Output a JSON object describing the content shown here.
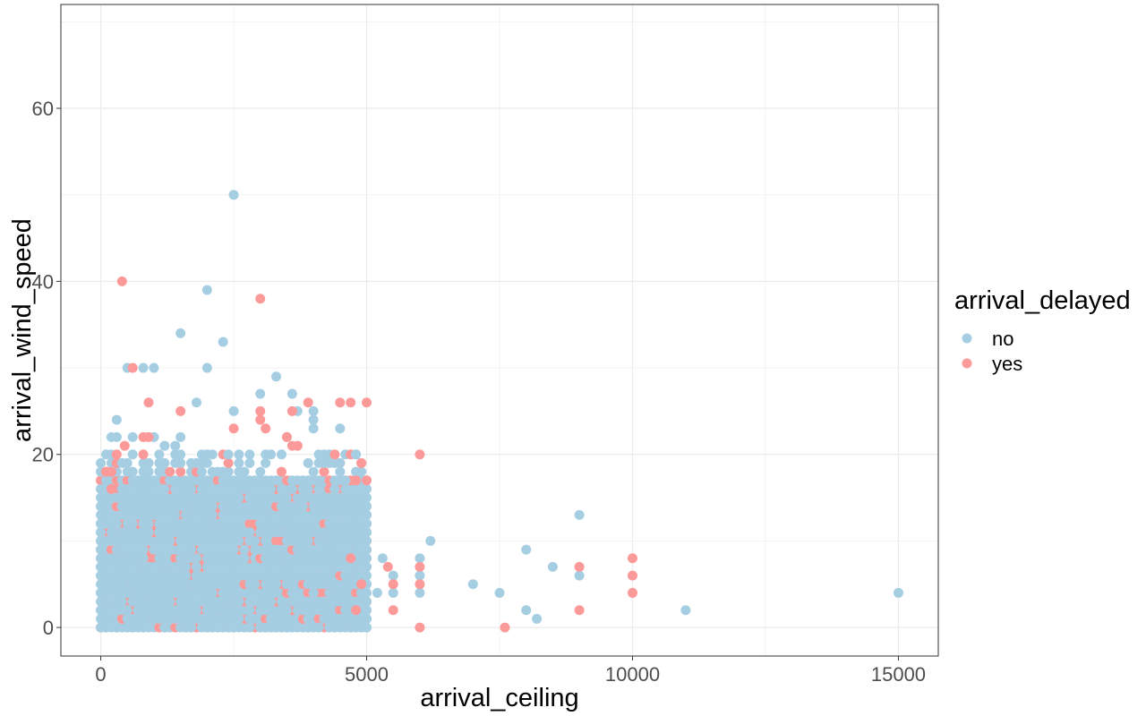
{
  "chart_data": {
    "type": "scatter",
    "title": "",
    "xlabel": "arrival_ceiling",
    "ylabel": "arrival_wind_speed",
    "xlim": [
      -750,
      15750
    ],
    "ylim": [
      -3.3,
      72
    ],
    "x_ticks": [
      0,
      5000,
      10000,
      15000
    ],
    "x_tick_labels": [
      "0",
      "5000",
      "10000",
      "15000"
    ],
    "y_ticks": [
      0,
      20,
      40,
      60
    ],
    "y_tick_labels": [
      "0",
      "20",
      "40",
      "60"
    ],
    "grid": true,
    "legend": {
      "title": "arrival_delayed",
      "position": "right",
      "entries": [
        {
          "name": "no",
          "color": "#a6cee3"
        },
        {
          "name": "yes",
          "color": "#fb9a99"
        }
      ]
    },
    "dense_cluster": {
      "description": "dense overlapping band of points",
      "x_range": [
        0,
        5000
      ],
      "y_range": [
        0,
        20
      ]
    },
    "series": [
      {
        "name": "no",
        "color": "#a6cee3",
        "points": [
          [
            2500,
            50
          ],
          [
            2000,
            39
          ],
          [
            1500,
            34
          ],
          [
            2300,
            33
          ],
          [
            2000,
            30
          ],
          [
            500,
            30
          ],
          [
            800,
            30
          ],
          [
            1000,
            30
          ],
          [
            3300,
            29
          ],
          [
            3000,
            27
          ],
          [
            3600,
            27
          ],
          [
            1800,
            26
          ],
          [
            2500,
            25
          ],
          [
            3700,
            25
          ],
          [
            4000,
            25
          ],
          [
            4000,
            24
          ],
          [
            4000,
            23
          ],
          [
            4500,
            23
          ],
          [
            300,
            24
          ],
          [
            200,
            22
          ],
          [
            300,
            22
          ],
          [
            600,
            22
          ],
          [
            1000,
            22
          ],
          [
            1500,
            22
          ],
          [
            3500,
            22
          ],
          [
            1200,
            21
          ],
          [
            1400,
            21
          ],
          [
            4200,
            20
          ],
          [
            4800,
            20
          ],
          [
            6200,
            10
          ],
          [
            6000,
            8
          ],
          [
            7000,
            5
          ],
          [
            7500,
            4
          ],
          [
            5200,
            4
          ],
          [
            5500,
            4
          ],
          [
            5500,
            6
          ],
          [
            6000,
            4
          ],
          [
            6000,
            6
          ],
          [
            8000,
            9
          ],
          [
            8500,
            7
          ],
          [
            9000,
            13
          ],
          [
            9000,
            6
          ],
          [
            8000,
            2
          ],
          [
            8200,
            1
          ],
          [
            11000,
            2
          ],
          [
            15000,
            4
          ],
          [
            5300,
            8
          ],
          [
            4500,
            19
          ],
          [
            4600,
            17
          ],
          [
            4700,
            15
          ],
          [
            4800,
            12
          ],
          [
            4900,
            10
          ],
          [
            5000,
            14
          ],
          [
            5000,
            11
          ],
          [
            5000,
            9
          ],
          [
            4900,
            7
          ],
          [
            4800,
            3
          ],
          [
            5000,
            1
          ],
          [
            4700,
            0
          ]
        ]
      },
      {
        "name": "yes",
        "color": "#fb9a99",
        "points": [
          [
            400,
            40
          ],
          [
            3000,
            38
          ],
          [
            600,
            30
          ],
          [
            900,
            26
          ],
          [
            3900,
            26
          ],
          [
            4500,
            26
          ],
          [
            4700,
            26
          ],
          [
            5000,
            26
          ],
          [
            1500,
            25
          ],
          [
            3000,
            25
          ],
          [
            3600,
            25
          ],
          [
            3000,
            24
          ],
          [
            2500,
            23
          ],
          [
            3100,
            23
          ],
          [
            800,
            22
          ],
          [
            900,
            22
          ],
          [
            3500,
            22
          ],
          [
            3600,
            21
          ],
          [
            3700,
            21
          ],
          [
            450,
            21
          ],
          [
            300,
            20
          ],
          [
            6000,
            20
          ],
          [
            4900,
            19
          ],
          [
            100,
            18
          ],
          [
            200,
            18
          ],
          [
            4800,
            17
          ],
          [
            5000,
            17
          ],
          [
            5400,
            7
          ],
          [
            5500,
            5
          ],
          [
            5500,
            2
          ],
          [
            6000,
            7
          ],
          [
            6000,
            5
          ],
          [
            6000,
            0
          ],
          [
            7600,
            0
          ],
          [
            9000,
            7
          ],
          [
            9000,
            2
          ],
          [
            10000,
            8
          ],
          [
            10000,
            6
          ],
          [
            10000,
            4
          ],
          [
            4900,
            5
          ],
          [
            4800,
            2
          ],
          [
            4700,
            8
          ],
          [
            200,
            16
          ]
        ]
      }
    ]
  }
}
